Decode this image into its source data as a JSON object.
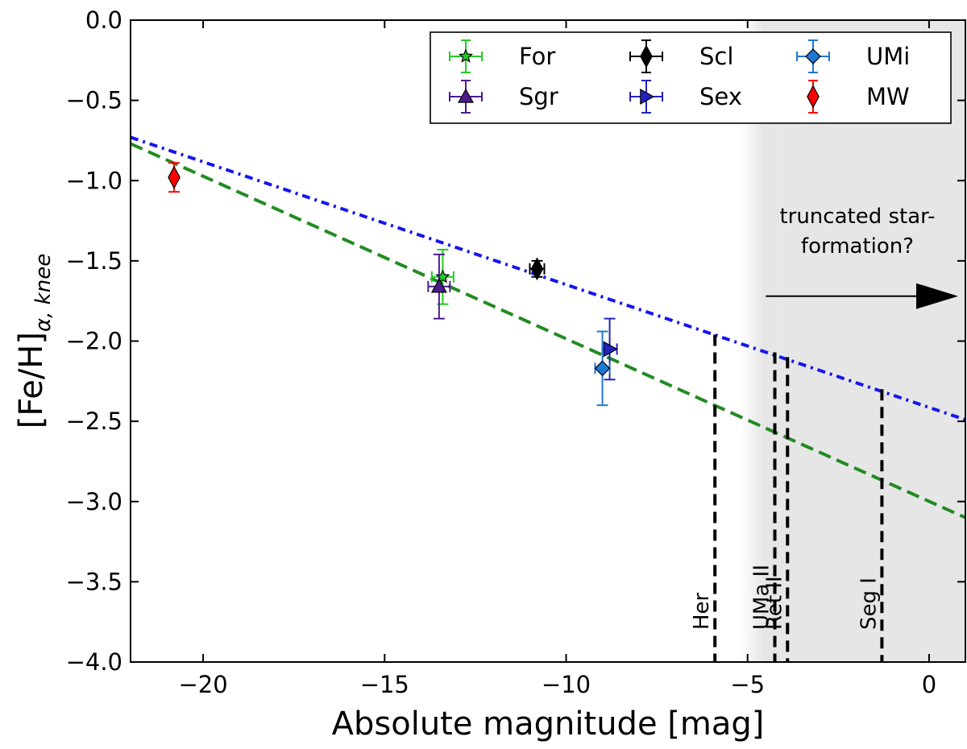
{
  "chart_data": {
    "type": "scatter",
    "xlabel": "Absolute magnitude [mag]",
    "ylabel_base": "[Fe/H]",
    "ylabel_sub": "α, knee",
    "xlim": [
      -22,
      1
    ],
    "ylim": [
      -4.0,
      0.0
    ],
    "xticks": [
      -20,
      -15,
      -10,
      -5,
      0
    ],
    "xtick_labels": [
      "−20",
      "−15",
      "−10",
      "−5",
      "0"
    ],
    "yticks": [
      0.0,
      -0.5,
      -1.0,
      -1.5,
      -2.0,
      -2.5,
      -3.0,
      -3.5,
      -4.0
    ],
    "ytick_labels": [
      "0.0",
      "−0.5",
      "−1.0",
      "−1.5",
      "−2.0",
      "−2.5",
      "−3.0",
      "−3.5",
      "−4.0"
    ],
    "grid": false,
    "legend_position": "top-right",
    "series": [
      {
        "name": "For",
        "marker": "star",
        "color": "#22cc22",
        "x": -13.4,
        "y": -1.6,
        "xerr": 0.3,
        "yerr": 0.17
      },
      {
        "name": "Sgr",
        "marker": "triangle-up",
        "color": "#4b1c8c",
        "x": -13.5,
        "y": -1.66,
        "xerr": 0.3,
        "yerr": 0.2
      },
      {
        "name": "Scl",
        "marker": "diamond-thin",
        "color": "#000000",
        "x": -10.8,
        "y": -1.55,
        "xerr": 0.2,
        "yerr": 0.05
      },
      {
        "name": "Sex",
        "marker": "triangle-right",
        "color": "#2222bb",
        "x": -8.8,
        "y": -2.05,
        "xerr": 0.2,
        "yerr": 0.19
      },
      {
        "name": "UMi",
        "marker": "diamond",
        "color": "#1f77d4",
        "x": -9.0,
        "y": -2.17,
        "xerr": 0.2,
        "yerr": 0.23
      },
      {
        "name": "MW",
        "marker": "diamond-thin",
        "color": "#ff0000",
        "x": -20.8,
        "y": -0.98,
        "xerr": 0.0,
        "yerr": 0.09
      }
    ],
    "fit_lines": [
      {
        "style": "dashed",
        "color": "#228b22",
        "x": [
          -22,
          1
        ],
        "y": [
          -0.77,
          -3.1
        ]
      },
      {
        "style": "dashdot",
        "color": "#1515ee",
        "x": [
          -22,
          1
        ],
        "y": [
          -0.73,
          -2.49
        ]
      }
    ],
    "shaded_region": {
      "x_from": -5.0,
      "x_to": 1,
      "color": "#e6e6e6"
    },
    "vertical_markers": [
      {
        "label": "Her",
        "x": -5.9,
        "y_top": -1.96
      },
      {
        "label": "UMa II",
        "x": -4.25,
        "y_top": -2.07
      },
      {
        "label": "Ret II",
        "x": -3.9,
        "y_top": -2.1
      },
      {
        "label": "Seg I",
        "x": -1.3,
        "y_top": -2.3
      }
    ],
    "annotation": {
      "lines": [
        "truncated star-",
        "formation?"
      ],
      "arrow_from": [
        -4.5,
        -1.72
      ],
      "arrow_to": [
        0.8,
        -1.72
      ]
    }
  }
}
